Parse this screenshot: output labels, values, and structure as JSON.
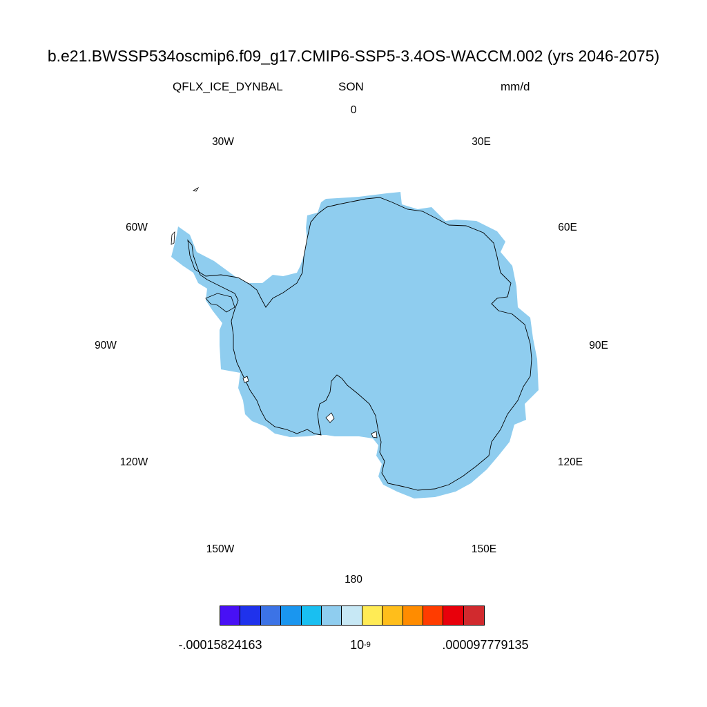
{
  "title": "b.e21.BWSSP534oscmip6.f09_g17.CMIP6-SSP5-3.4OS-WACCM.002 (yrs 2046-2075)",
  "variable": "QFLX_ICE_DYNBAL",
  "season": "SON",
  "units": "mm/d",
  "longitude_labels": [
    "0",
    "30E",
    "60E",
    "90E",
    "120E",
    "150E",
    "180",
    "150W",
    "120W",
    "90W",
    "60W",
    "30W"
  ],
  "map": {
    "projection": "south-polar-stereographic",
    "region": "Antarctica",
    "fill_color": "#8fcdef",
    "coastline_color": "#000000"
  },
  "colorbar": {
    "colors": [
      "#4810f5",
      "#1f32ec",
      "#3c73e6",
      "#1a96ef",
      "#19bff1",
      "#8fcdef",
      "#c7e8f5",
      "#ffeb55",
      "#ffbe1b",
      "#ff8c00",
      "#ff3c00",
      "#e8000b",
      "#d12a2e"
    ],
    "min_label": "-.00015824163",
    "mid_label_base": "10",
    "mid_label_exp": "-9",
    "max_label": ".000097779135"
  }
}
